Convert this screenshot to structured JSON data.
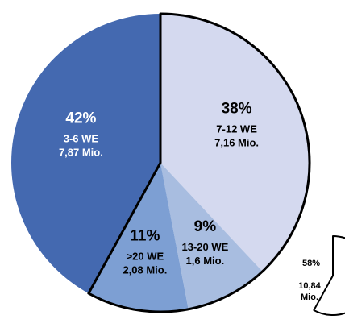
{
  "colors": {
    "s1": "#d4d9ef",
    "s2": "#a8bde0",
    "s3": "#7d9fd3",
    "s4": "#4469b0",
    "outline": "#000000",
    "text_dark": "#000000",
    "text_light": "#ffffff"
  },
  "chart_data": [
    {
      "type": "pie",
      "title": "",
      "start_angle_deg": 0,
      "direction": "clockwise",
      "slices": [
        {
          "value": 38,
          "pct_label": "38%",
          "line1": "7-12 WE",
          "line2": "7,16 Mio.",
          "color_key": "s1",
          "text_color_key": "text_dark",
          "highlighted": true
        },
        {
          "value": 9,
          "pct_label": "9%",
          "line1": "13-20 WE",
          "line2": "1,6 Mio.",
          "color_key": "s2",
          "text_color_key": "text_dark",
          "highlighted": true
        },
        {
          "value": 11,
          "pct_label": "11%",
          "line1": ">20 WE",
          "line2": "2,08 Mio.",
          "color_key": "s3",
          "text_color_key": "text_dark",
          "highlighted": true
        },
        {
          "value": 42,
          "pct_label": "42%",
          "line1": "3-6 WE",
          "line2": "7,87 Mio.",
          "color_key": "s4",
          "text_color_key": "text_light",
          "highlighted": false
        }
      ]
    },
    {
      "type": "pie",
      "title": "",
      "value": 58,
      "pct_label": "58%",
      "line1": "10,84",
      "line2": "Mio."
    }
  ]
}
